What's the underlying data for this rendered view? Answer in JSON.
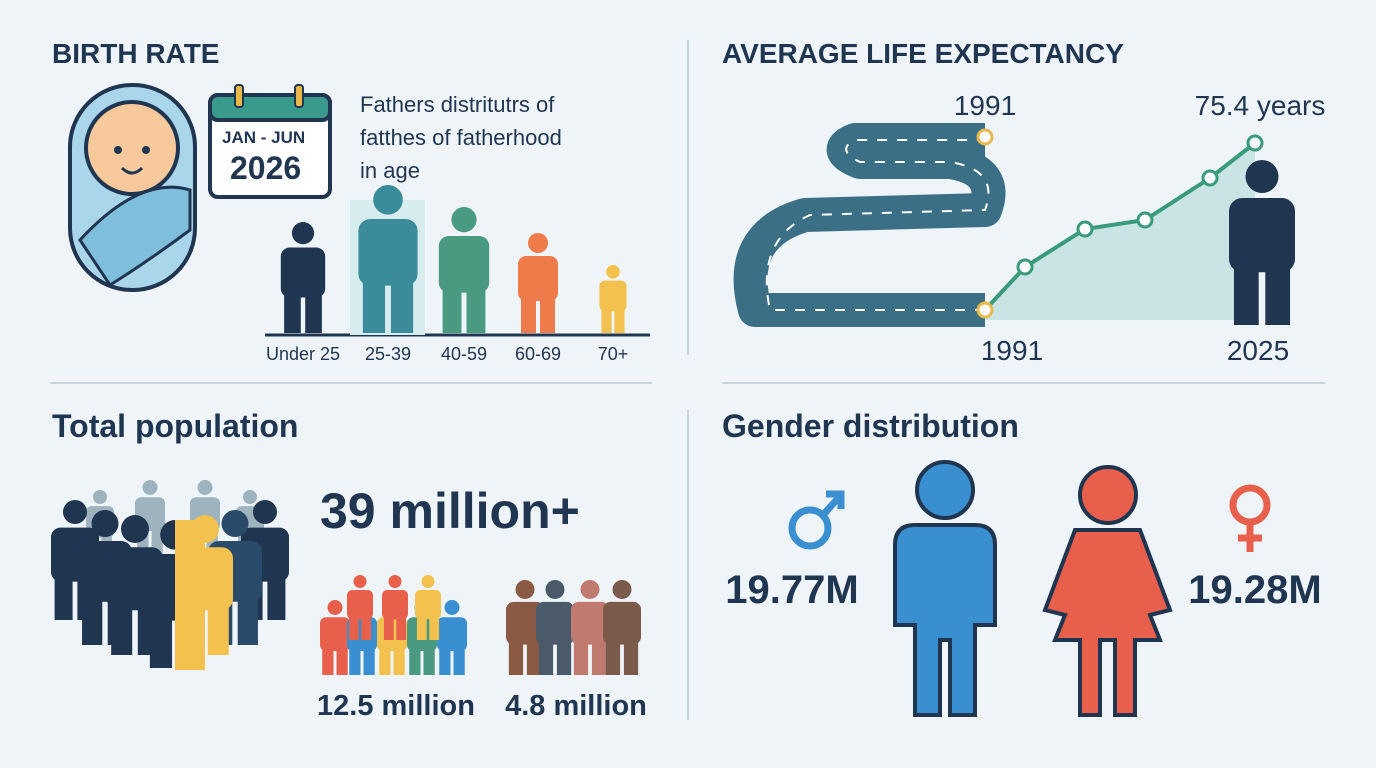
{
  "birth_rate": {
    "title": "BIRTH RATE",
    "calendar": {
      "period": "JAN - JUN",
      "year": "2026"
    },
    "note_lines": [
      "Fathers distritutrs of",
      "fatthes of fatherhood",
      "in age"
    ],
    "age_groups": [
      "Under 25",
      "25-39",
      "40-59",
      "60-69",
      "70+"
    ]
  },
  "life_expectancy": {
    "title": "AVERAGE LIFE EXPECTANCY",
    "top_label": "1991",
    "value_label": "75.4 years",
    "start_year": "1991",
    "end_year": "2025"
  },
  "population": {
    "title": "Total population",
    "total": "39 million+",
    "children": "12.5 million",
    "seniors": "4.8 million"
  },
  "gender": {
    "title": "Gender distribution",
    "male": "19.77M",
    "female": "19.28M"
  }
}
